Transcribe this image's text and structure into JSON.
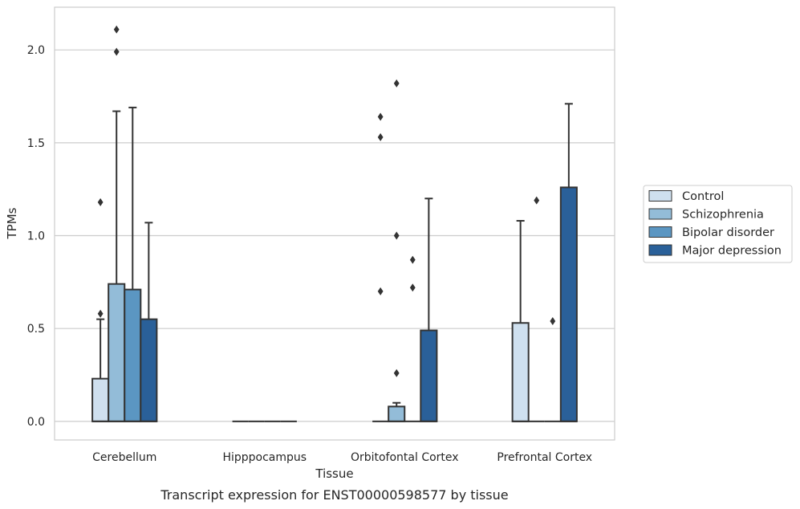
{
  "chart_data": {
    "type": "boxplot",
    "caption": "Transcript expression for ENST00000598577 by tissue",
    "xlabel": "Tissue",
    "ylabel": "TPMs",
    "ylim": [
      -0.1,
      2.23
    ],
    "yticks": [
      0.0,
      0.5,
      1.0,
      1.5,
      2.0
    ],
    "ytick_labels": [
      "0.0",
      "0.5",
      "1.0",
      "1.5",
      "2.0"
    ],
    "grid": "horizontal",
    "legend_position": "right",
    "categories": [
      "Cerebellum",
      "Hipppocampus",
      "Orbitofontal Cortex",
      "Prefrontal Cortex"
    ],
    "series": [
      {
        "name": "Control",
        "color": "#cfe0ef",
        "boxes": [
          {
            "q1": 0.0,
            "q3": 0.23,
            "median": 0.0,
            "whisker_low": 0.0,
            "whisker_high": 0.55,
            "outliers": [
              0.58,
              1.18
            ]
          },
          {
            "q1": 0.0,
            "q3": 0.0,
            "median": 0.0,
            "whisker_low": 0.0,
            "whisker_high": 0.0,
            "outliers": []
          },
          {
            "q1": 0.0,
            "q3": 0.0,
            "median": 0.0,
            "whisker_low": 0.0,
            "whisker_high": 0.0,
            "outliers": [
              0.7,
              1.53,
              1.64
            ]
          },
          {
            "q1": 0.0,
            "q3": 0.53,
            "median": 0.0,
            "whisker_low": 0.0,
            "whisker_high": 1.08,
            "outliers": []
          }
        ]
      },
      {
        "name": "Schizophrenia",
        "color": "#93bcd8",
        "boxes": [
          {
            "q1": 0.0,
            "q3": 0.74,
            "median": 0.0,
            "whisker_low": 0.0,
            "whisker_high": 1.67,
            "outliers": [
              1.99,
              2.11
            ]
          },
          {
            "q1": 0.0,
            "q3": 0.0,
            "median": 0.0,
            "whisker_low": 0.0,
            "whisker_high": 0.0,
            "outliers": []
          },
          {
            "q1": 0.0,
            "q3": 0.08,
            "median": 0.0,
            "whisker_low": 0.0,
            "whisker_high": 0.1,
            "outliers": [
              0.26,
              1.0,
              1.82
            ]
          },
          {
            "q1": 0.0,
            "q3": 0.0,
            "median": 0.0,
            "whisker_low": 0.0,
            "whisker_high": 0.0,
            "outliers": [
              1.19
            ]
          }
        ]
      },
      {
        "name": "Bipolar disorder",
        "color": "#5b96c2",
        "boxes": [
          {
            "q1": 0.0,
            "q3": 0.71,
            "median": 0.0,
            "whisker_low": 0.0,
            "whisker_high": 1.69,
            "outliers": []
          },
          {
            "q1": 0.0,
            "q3": 0.0,
            "median": 0.0,
            "whisker_low": 0.0,
            "whisker_high": 0.0,
            "outliers": []
          },
          {
            "q1": 0.0,
            "q3": 0.0,
            "median": 0.0,
            "whisker_low": 0.0,
            "whisker_high": 0.0,
            "outliers": [
              0.72,
              0.87
            ]
          },
          {
            "q1": 0.0,
            "q3": 0.0,
            "median": 0.0,
            "whisker_low": 0.0,
            "whisker_high": 0.0,
            "outliers": [
              0.54
            ]
          }
        ]
      },
      {
        "name": "Major depression",
        "color": "#2a6099",
        "boxes": [
          {
            "q1": 0.0,
            "q3": 0.55,
            "median": 0.0,
            "whisker_low": 0.0,
            "whisker_high": 1.07,
            "outliers": []
          },
          {
            "q1": 0.0,
            "q3": 0.0,
            "median": 0.0,
            "whisker_low": 0.0,
            "whisker_high": 0.0,
            "outliers": []
          },
          {
            "q1": 0.0,
            "q3": 0.49,
            "median": 0.0,
            "whisker_low": 0.0,
            "whisker_high": 1.2,
            "outliers": []
          },
          {
            "q1": 0.0,
            "q3": 1.26,
            "median": 0.0,
            "whisker_low": 0.0,
            "whisker_high": 1.71,
            "outliers": []
          }
        ]
      }
    ]
  },
  "colors": {
    "grid": "#cccccc",
    "frame": "#cccccc",
    "stroke": "#333333"
  }
}
